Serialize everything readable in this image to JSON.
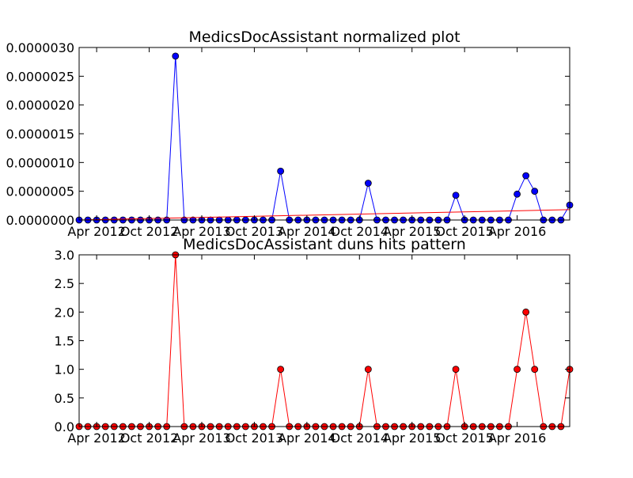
{
  "chart_data": [
    {
      "type": "line",
      "title": "MedicsDocAssistant normalized plot",
      "xlabel": "",
      "ylabel": "",
      "x_tick_labels": [
        "Apr 2012",
        "Oct 2012",
        "Apr 2013",
        "Oct 2013",
        "Apr 2014",
        "Oct 2014",
        "Apr 2015",
        "Oct 2015",
        "Apr 2016"
      ],
      "y_tick_labels": [
        "0.0000000",
        "0.0000005",
        "0.0000010",
        "0.0000015",
        "0.0000020",
        "0.0000025",
        "0.0000030"
      ],
      "ylim": [
        0,
        3e-06
      ],
      "grid": false,
      "series": [
        {
          "color": "#0000ff",
          "marker": "circle",
          "values": [
            0,
            0,
            0,
            0,
            0,
            0,
            0,
            0,
            0,
            0,
            0,
            2.85e-06,
            0,
            0,
            0,
            0,
            0,
            0,
            0,
            0,
            0,
            0,
            0,
            8.5e-07,
            0,
            0,
            0,
            0,
            0,
            0,
            0,
            0,
            0,
            6.4e-07,
            0,
            0,
            0,
            0,
            0,
            0,
            0,
            0,
            0,
            4.3e-07,
            0,
            0,
            0,
            0,
            0,
            0,
            4.5e-07,
            7.7e-07,
            5e-07,
            0,
            0,
            0,
            2.6e-07
          ]
        },
        {
          "color": "#ff0000",
          "style": "trend",
          "values": [
            0.0,
            1.8e-07
          ]
        }
      ]
    },
    {
      "type": "line",
      "title": "MedicsDocAssistant duns hits pattern",
      "xlabel": "",
      "ylabel": "",
      "x_tick_labels": [
        "Apr 2012",
        "Oct 2012",
        "Apr 2013",
        "Oct 2013",
        "Apr 2014",
        "Oct 2014",
        "Apr 2015",
        "Oct 2015",
        "Apr 2016"
      ],
      "y_tick_labels": [
        "0.0",
        "0.5",
        "1.0",
        "1.5",
        "2.0",
        "2.5",
        "3.0"
      ],
      "ylim": [
        0,
        3
      ],
      "grid": false,
      "series": [
        {
          "color": "#ff0000",
          "marker": "circle",
          "values": [
            0,
            0,
            0,
            0,
            0,
            0,
            0,
            0,
            0,
            0,
            0,
            3,
            0,
            0,
            0,
            0,
            0,
            0,
            0,
            0,
            0,
            0,
            0,
            1,
            0,
            0,
            0,
            0,
            0,
            0,
            0,
            0,
            0,
            1,
            0,
            0,
            0,
            0,
            0,
            0,
            0,
            0,
            0,
            1,
            0,
            0,
            0,
            0,
            0,
            0,
            1,
            2,
            1,
            0,
            0,
            0,
            1
          ]
        }
      ]
    }
  ]
}
